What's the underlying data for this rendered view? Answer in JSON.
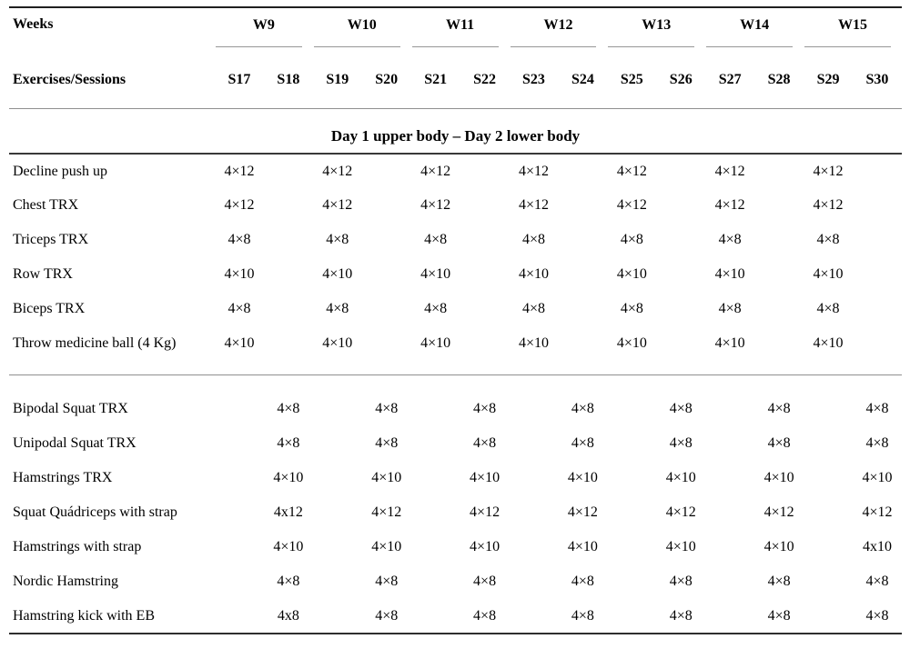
{
  "table": {
    "weeks_label": "Weeks",
    "exercises_sessions_label": "Exercises/Sessions",
    "weeks": [
      {
        "label": "W9",
        "sessions": [
          "S17",
          "S18"
        ]
      },
      {
        "label": "W10",
        "sessions": [
          "S19",
          "S20"
        ]
      },
      {
        "label": "W11",
        "sessions": [
          "S21",
          "S22"
        ]
      },
      {
        "label": "W12",
        "sessions": [
          "S23",
          "S24"
        ]
      },
      {
        "label": "W13",
        "sessions": [
          "S25",
          "S26"
        ]
      },
      {
        "label": "W14",
        "sessions": [
          "S27",
          "S28"
        ]
      },
      {
        "label": "W15",
        "sessions": [
          "S29",
          "S30"
        ]
      }
    ],
    "section_header": "Day 1 upper body – Day 2 lower body",
    "upper_body_rows": [
      {
        "exercise": "Decline push up",
        "values": [
          "4×12",
          "",
          "4×12",
          "",
          "4×12",
          "",
          "4×12",
          "",
          "4×12",
          "",
          "4×12",
          "",
          "4×12",
          ""
        ]
      },
      {
        "exercise": "Chest TRX",
        "values": [
          "4×12",
          "",
          "4×12",
          "",
          "4×12",
          "",
          "4×12",
          "",
          "4×12",
          "",
          "4×12",
          "",
          "4×12",
          ""
        ]
      },
      {
        "exercise": "Triceps TRX",
        "values": [
          "4×8",
          "",
          "4×8",
          "",
          "4×8",
          "",
          "4×8",
          "",
          "4×8",
          "",
          "4×8",
          "",
          "4×8",
          ""
        ]
      },
      {
        "exercise": "Row TRX",
        "values": [
          "4×10",
          "",
          "4×10",
          "",
          "4×10",
          "",
          "4×10",
          "",
          "4×10",
          "",
          "4×10",
          "",
          "4×10",
          ""
        ]
      },
      {
        "exercise": "Biceps TRX",
        "values": [
          "4×8",
          "",
          "4×8",
          "",
          "4×8",
          "",
          "4×8",
          "",
          "4×8",
          "",
          "4×8",
          "",
          "4×8",
          ""
        ]
      },
      {
        "exercise": "Throw medicine ball (4 Kg)",
        "values": [
          "4×10",
          "",
          "4×10",
          "",
          "4×10",
          "",
          "4×10",
          "",
          "4×10",
          "",
          "4×10",
          "",
          "4×10",
          ""
        ]
      }
    ],
    "lower_body_rows": [
      {
        "exercise": "Bipodal Squat TRX",
        "values": [
          "",
          "4×8",
          "",
          "4×8",
          "",
          "4×8",
          "",
          "4×8",
          "",
          "4×8",
          "",
          "4×8",
          "",
          "4×8"
        ]
      },
      {
        "exercise": "Unipodal Squat TRX",
        "values": [
          "",
          "4×8",
          "",
          "4×8",
          "",
          "4×8",
          "",
          "4×8",
          "",
          "4×8",
          "",
          "4×8",
          "",
          "4×8"
        ]
      },
      {
        "exercise": "Hamstrings TRX",
        "values": [
          "",
          "4×10",
          "",
          "4×10",
          "",
          "4×10",
          "",
          "4×10",
          "",
          "4×10",
          "",
          "4×10",
          "",
          "4×10"
        ]
      },
      {
        "exercise": "Squat Quádriceps with strap",
        "values": [
          "",
          "4x12",
          "",
          "4×12",
          "",
          "4×12",
          "",
          "4×12",
          "",
          "4×12",
          "",
          "4×12",
          "",
          "4×12"
        ]
      },
      {
        "exercise": "Hamstrings with strap",
        "values": [
          "",
          "4×10",
          "",
          "4×10",
          "",
          "4×10",
          "",
          "4×10",
          "",
          "4×10",
          "",
          "4×10",
          "",
          "4x10"
        ]
      },
      {
        "exercise": "Nordic Hamstring",
        "values": [
          "",
          "4×8",
          "",
          "4×8",
          "",
          "4×8",
          "",
          "4×8",
          "",
          "4×8",
          "",
          "4×8",
          "",
          "4×8"
        ]
      },
      {
        "exercise": "Hamstring kick with EB",
        "values": [
          "",
          "4x8",
          "",
          "4×8",
          "",
          "4×8",
          "",
          "4×8",
          "",
          "4×8",
          "",
          "4×8",
          "",
          "4×8"
        ]
      }
    ],
    "colors": {
      "text": "#000000",
      "rule_light": "#8f8f8f",
      "rule_dark": "#2e2e2e",
      "week_rule": "#969696"
    }
  }
}
